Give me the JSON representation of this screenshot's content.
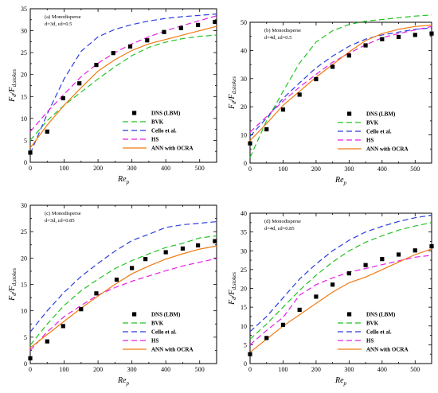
{
  "figure": {
    "legend_labels": [
      "DNS (LBM)",
      "BVK",
      "Cello et al.",
      "HS",
      "ANN with OCRA"
    ],
    "colors": {
      "DNS (LBM)": "#000000",
      "BVK": "#22c322",
      "Cello et al.": "#2b3fdc",
      "HS": "#e61ee6",
      "ANN with OCRA": "#f07a12"
    }
  },
  "chart_data": [
    {
      "type": "line",
      "annotation_lines": [
        "(a) Monodisperse",
        "d=3d, εd=0.5"
      ],
      "xlabel": "Re_p",
      "ylabel": "F_d/F_d,stokes",
      "xlim": [
        0,
        550
      ],
      "ylim": [
        0,
        35
      ],
      "xticks": [
        0,
        100,
        200,
        300,
        400,
        500
      ],
      "yticks": [
        0,
        5,
        10,
        15,
        20,
        25,
        30,
        35
      ],
      "legend_position": "bottom-right",
      "scatter": {
        "name": "DNS (LBM)",
        "x": [
          0,
          50,
          97,
          145,
          195,
          245,
          295,
          345,
          395,
          445,
          495,
          545
        ],
        "y": [
          2.2,
          7.0,
          14.6,
          18.0,
          22.2,
          24.9,
          26.4,
          27.8,
          29.7,
          30.6,
          31.3,
          32.0
        ]
      },
      "series": [
        {
          "name": "BVK",
          "x": [
            0,
            50,
            100,
            150,
            200,
            250,
            300,
            350,
            400,
            450,
            500,
            550
          ],
          "y": [
            5.0,
            9.5,
            13.0,
            16.0,
            19.0,
            21.8,
            24.3,
            26.2,
            27.4,
            28.2,
            28.7,
            29.0
          ]
        },
        {
          "name": "Cello et al.",
          "x": [
            0,
            50,
            100,
            150,
            200,
            250,
            300,
            350,
            400,
            450,
            500,
            550
          ],
          "y": [
            2.0,
            11.0,
            19.0,
            25.3,
            28.6,
            30.3,
            31.4,
            32.2,
            32.8,
            33.2,
            33.5,
            33.8
          ]
        },
        {
          "name": "HS",
          "x": [
            0,
            50,
            100,
            150,
            200,
            250,
            300,
            350,
            400,
            450,
            500,
            550
          ],
          "y": [
            7.0,
            11.5,
            15.5,
            19.5,
            22.6,
            25.0,
            27.0,
            28.6,
            30.0,
            31.2,
            32.3,
            33.4
          ]
        },
        {
          "name": "ANN with OCRA",
          "x": [
            0,
            50,
            100,
            150,
            200,
            250,
            300,
            350,
            400,
            450,
            500,
            550
          ],
          "y": [
            3.3,
            8.5,
            13.0,
            17.0,
            20.8,
            23.4,
            25.5,
            27.0,
            28.0,
            29.0,
            30.0,
            31.0
          ]
        }
      ]
    },
    {
      "type": "line",
      "annotation_lines": [
        "(b) Monodisperse",
        "d=4d, εd=0.5"
      ],
      "xlabel": "Re_p",
      "ylabel": "F_d/F_d,stokes",
      "xlim": [
        0,
        550
      ],
      "ylim": [
        0,
        50
      ],
      "xticks": [
        0,
        100,
        200,
        300,
        400,
        500
      ],
      "yticks": [
        0,
        10,
        20,
        30,
        40,
        50
      ],
      "legend_position": "bottom-right",
      "scatter": {
        "name": "DNS (LBM)",
        "x": [
          0,
          50,
          100,
          150,
          200,
          250,
          300,
          350,
          400,
          450,
          500,
          550
        ],
        "y": [
          7.0,
          12.0,
          19.0,
          24.3,
          29.8,
          34.2,
          38.2,
          41.8,
          44.0,
          44.8,
          45.5,
          46.0
        ]
      },
      "series": [
        {
          "name": "BVK",
          "x": [
            0,
            50,
            100,
            150,
            200,
            250,
            300,
            350,
            400,
            450,
            500,
            550
          ],
          "y": [
            2.0,
            15.0,
            25.5,
            35.5,
            43.0,
            47.0,
            49.2,
            50.4,
            51.0,
            51.6,
            52.2,
            52.6
          ]
        },
        {
          "name": "Cello et al.",
          "x": [
            0,
            50,
            100,
            150,
            200,
            250,
            300,
            350,
            400,
            450,
            500,
            550
          ],
          "y": [
            9.5,
            16.0,
            23.0,
            28.5,
            33.8,
            38.0,
            41.5,
            44.0,
            45.5,
            46.5,
            47.5,
            48.0
          ]
        },
        {
          "name": "HS",
          "x": [
            0,
            50,
            100,
            150,
            200,
            250,
            300,
            350,
            400,
            450,
            500,
            550
          ],
          "y": [
            11.0,
            16.5,
            22.0,
            27.0,
            31.5,
            35.8,
            39.0,
            42.0,
            44.5,
            46.0,
            47.3,
            48.5
          ]
        },
        {
          "name": "ANN with OCRA",
          "x": [
            0,
            50,
            100,
            150,
            200,
            250,
            300,
            350,
            400,
            450,
            500,
            550
          ],
          "y": [
            8.0,
            14.0,
            20.5,
            25.5,
            30.5,
            35.0,
            39.5,
            43.5,
            46.0,
            47.5,
            48.5,
            49.0
          ]
        }
      ]
    },
    {
      "type": "line",
      "annotation_lines": [
        "(c) Monodisperse",
        "d=3d, εd=0.85"
      ],
      "xlabel": "Re_p",
      "ylabel": "F_d/F_d,stokes",
      "xlim": [
        0,
        550
      ],
      "ylim": [
        0,
        30
      ],
      "xticks": [
        0,
        100,
        200,
        300,
        400,
        500
      ],
      "yticks": [
        0,
        5,
        10,
        15,
        20,
        25,
        30
      ],
      "legend_position": "bottom-right",
      "scatter": {
        "name": "DNS (LBM)",
        "x": [
          0,
          50,
          97,
          150,
          195,
          255,
          300,
          340,
          400,
          450,
          495,
          545
        ],
        "y": [
          1.0,
          4.2,
          7.1,
          10.3,
          13.3,
          15.9,
          18.1,
          19.8,
          21.1,
          21.8,
          22.4,
          23.2
        ]
      },
      "series": [
        {
          "name": "BVK",
          "x": [
            0,
            50,
            100,
            150,
            200,
            250,
            300,
            350,
            400,
            450,
            500,
            550
          ],
          "y": [
            3.5,
            7.5,
            11.0,
            13.8,
            16.0,
            18.0,
            19.5,
            20.8,
            22.0,
            22.8,
            23.8,
            24.2
          ]
        },
        {
          "name": "Cello et al.",
          "x": [
            0,
            50,
            100,
            150,
            200,
            250,
            300,
            350,
            400,
            450,
            500,
            550
          ],
          "y": [
            6.0,
            10.0,
            13.5,
            16.5,
            19.0,
            21.3,
            23.3,
            24.5,
            25.8,
            26.3,
            26.6,
            26.9
          ]
        },
        {
          "name": "HS",
          "x": [
            0,
            50,
            100,
            150,
            200,
            250,
            300,
            350,
            400,
            450,
            500,
            550
          ],
          "y": [
            2.5,
            6.0,
            8.9,
            11.0,
            13.0,
            14.4,
            15.6,
            16.6,
            17.6,
            18.5,
            19.2,
            19.9
          ]
        },
        {
          "name": "ANN with OCRA",
          "x": [
            0,
            50,
            100,
            150,
            200,
            250,
            300,
            350,
            400,
            450,
            500,
            550
          ],
          "y": [
            3.0,
            5.5,
            8.0,
            10.5,
            12.8,
            15.0,
            17.0,
            18.5,
            19.8,
            20.8,
            21.7,
            22.3
          ]
        }
      ]
    },
    {
      "type": "line",
      "annotation_lines": [
        "(d) Monodisperse",
        "d=4d, εd=0.85"
      ],
      "xlabel": "Re_p",
      "ylabel": "F_d/F_d,stokes",
      "xlim": [
        0,
        550
      ],
      "ylim": [
        0,
        40
      ],
      "xticks": [
        0,
        100,
        200,
        300,
        400,
        500
      ],
      "yticks": [
        0,
        5,
        10,
        15,
        20,
        25,
        30,
        35,
        40
      ],
      "legend_position": "bottom-right",
      "scatter": {
        "name": "DNS (LBM)",
        "x": [
          0,
          50,
          100,
          150,
          200,
          250,
          300,
          350,
          400,
          450,
          500,
          550
        ],
        "y": [
          2.5,
          6.8,
          10.3,
          14.3,
          17.8,
          21.0,
          24.0,
          26.2,
          27.8,
          29.0,
          30.1,
          31.2
        ]
      },
      "series": [
        {
          "name": "BVK",
          "x": [
            0,
            50,
            100,
            150,
            200,
            250,
            300,
            350,
            400,
            450,
            500,
            550
          ],
          "y": [
            6.5,
            10.5,
            15.0,
            19.5,
            23.5,
            27.0,
            30.0,
            32.3,
            34.0,
            35.5,
            36.6,
            37.5
          ]
        },
        {
          "name": "Cello et al.",
          "x": [
            0,
            50,
            100,
            150,
            200,
            250,
            300,
            350,
            400,
            450,
            500,
            550
          ],
          "y": [
            8.5,
            12.5,
            17.5,
            22.5,
            26.5,
            30.0,
            32.8,
            35.0,
            36.5,
            37.8,
            38.8,
            39.5
          ]
        },
        {
          "name": "HS",
          "x": [
            0,
            50,
            100,
            150,
            200,
            250,
            300,
            350,
            400,
            450,
            500,
            550
          ],
          "y": [
            5.0,
            8.8,
            12.3,
            18.2,
            21.0,
            22.8,
            24.3,
            25.3,
            26.3,
            27.3,
            28.3,
            28.8
          ]
        },
        {
          "name": "ANN with OCRA",
          "x": [
            0,
            50,
            100,
            150,
            200,
            250,
            300,
            350,
            400,
            450,
            500,
            550
          ],
          "y": [
            3.0,
            6.5,
            10.0,
            13.0,
            16.0,
            19.0,
            21.5,
            23.0,
            25.0,
            27.0,
            29.0,
            30.5
          ]
        }
      ]
    }
  ]
}
